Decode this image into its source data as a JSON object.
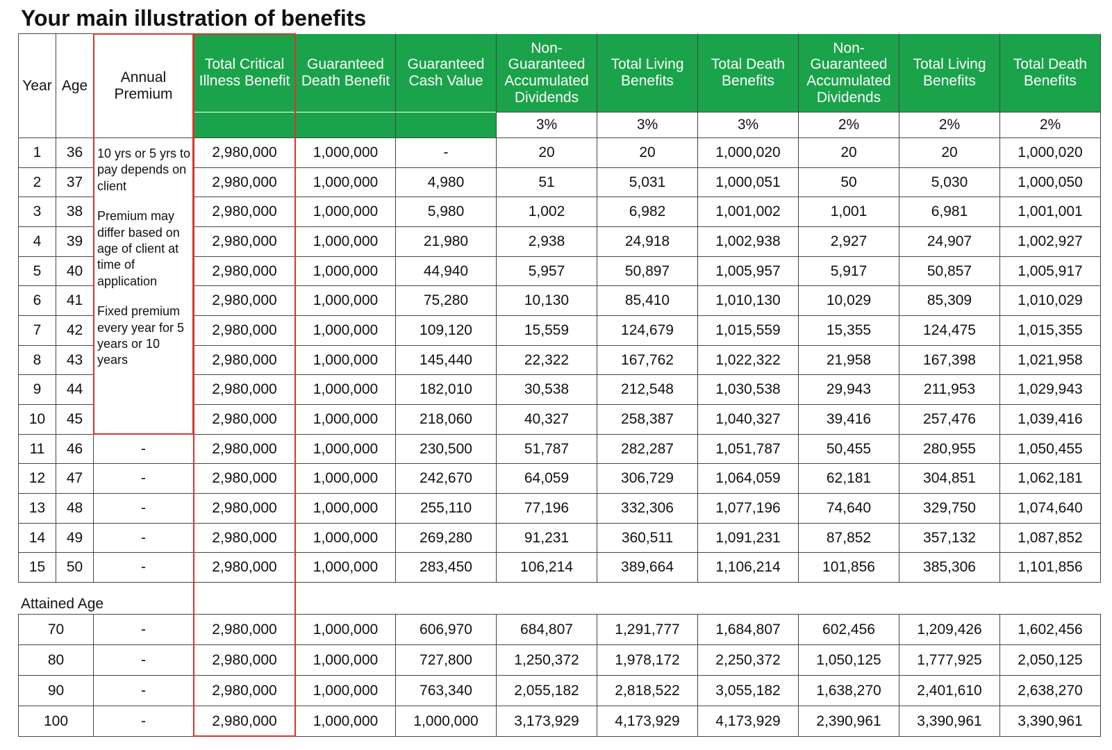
{
  "title": "Your main illustration of benefits",
  "header": {
    "columns": [
      "Year",
      "Age",
      "Annual Premium",
      "Total Critical Illness Benefit",
      "Guaranteed Death Benefit",
      "Guaranteed Cash Value",
      "Non-Guaranteed Accumulated Dividends",
      "Total Living Benefits",
      "Total Death Benefits",
      "Non-Guaranteed Accumulated Dividends",
      "Total Living Benefits",
      "Total Death Benefits"
    ],
    "rates": [
      "3%",
      "3%",
      "3%",
      "2%",
      "2%",
      "2%"
    ]
  },
  "premium_note": [
    "10 yrs or 5 yrs to pay depends on client",
    "Premium may differ based on age of client at time of application",
    "Fixed premium every year for 5 years or 10 years"
  ],
  "rows": [
    {
      "year": "1",
      "age": "36",
      "values": [
        "2,980,000",
        "1,000,000",
        "-",
        "20",
        "20",
        "1,000,020",
        "20",
        "20",
        "1,000,020"
      ]
    },
    {
      "year": "2",
      "age": "37",
      "values": [
        "2,980,000",
        "1,000,000",
        "4,980",
        "51",
        "5,031",
        "1,000,051",
        "50",
        "5,030",
        "1,000,050"
      ]
    },
    {
      "year": "3",
      "age": "38",
      "values": [
        "2,980,000",
        "1,000,000",
        "5,980",
        "1,002",
        "6,982",
        "1,001,002",
        "1,001",
        "6,981",
        "1,001,001"
      ]
    },
    {
      "year": "4",
      "age": "39",
      "values": [
        "2,980,000",
        "1,000,000",
        "21,980",
        "2,938",
        "24,918",
        "1,002,938",
        "2,927",
        "24,907",
        "1,002,927"
      ]
    },
    {
      "year": "5",
      "age": "40",
      "values": [
        "2,980,000",
        "1,000,000",
        "44,940",
        "5,957",
        "50,897",
        "1,005,957",
        "5,917",
        "50,857",
        "1,005,917"
      ]
    },
    {
      "year": "6",
      "age": "41",
      "values": [
        "2,980,000",
        "1,000,000",
        "75,280",
        "10,130",
        "85,410",
        "1,010,130",
        "10,029",
        "85,309",
        "1,010,029"
      ]
    },
    {
      "year": "7",
      "age": "42",
      "values": [
        "2,980,000",
        "1,000,000",
        "109,120",
        "15,559",
        "124,679",
        "1,015,559",
        "15,355",
        "124,475",
        "1,015,355"
      ]
    },
    {
      "year": "8",
      "age": "43",
      "values": [
        "2,980,000",
        "1,000,000",
        "145,440",
        "22,322",
        "167,762",
        "1,022,322",
        "21,958",
        "167,398",
        "1,021,958"
      ]
    },
    {
      "year": "9",
      "age": "44",
      "values": [
        "2,980,000",
        "1,000,000",
        "182,010",
        "30,538",
        "212,548",
        "1,030,538",
        "29,943",
        "211,953",
        "1,029,943"
      ]
    },
    {
      "year": "10",
      "age": "45",
      "values": [
        "2,980,000",
        "1,000,000",
        "218,060",
        "40,327",
        "258,387",
        "1,040,327",
        "39,416",
        "257,476",
        "1,039,416"
      ]
    },
    {
      "year": "11",
      "age": "46",
      "premium": "-",
      "values": [
        "2,980,000",
        "1,000,000",
        "230,500",
        "51,787",
        "282,287",
        "1,051,787",
        "50,455",
        "280,955",
        "1,050,455"
      ]
    },
    {
      "year": "12",
      "age": "47",
      "premium": "-",
      "values": [
        "2,980,000",
        "1,000,000",
        "242,670",
        "64,059",
        "306,729",
        "1,064,059",
        "62,181",
        "304,851",
        "1,062,181"
      ]
    },
    {
      "year": "13",
      "age": "48",
      "premium": "-",
      "values": [
        "2,980,000",
        "1,000,000",
        "255,110",
        "77,196",
        "332,306",
        "1,077,196",
        "74,640",
        "329,750",
        "1,074,640"
      ]
    },
    {
      "year": "14",
      "age": "49",
      "premium": "-",
      "values": [
        "2,980,000",
        "1,000,000",
        "269,280",
        "91,231",
        "360,511",
        "1,091,231",
        "87,852",
        "357,132",
        "1,087,852"
      ]
    },
    {
      "year": "15",
      "age": "50",
      "premium": "-",
      "values": [
        "2,980,000",
        "1,000,000",
        "283,450",
        "106,214",
        "389,664",
        "1,106,214",
        "101,856",
        "385,306",
        "1,101,856"
      ]
    }
  ],
  "attained_age": {
    "label": "Attained Age",
    "rows": [
      {
        "age": "70",
        "premium": "-",
        "values": [
          "2,980,000",
          "1,000,000",
          "606,970",
          "684,807",
          "1,291,777",
          "1,684,807",
          "602,456",
          "1,209,426",
          "1,602,456"
        ]
      },
      {
        "age": "80",
        "premium": "-",
        "values": [
          "2,980,000",
          "1,000,000",
          "727,800",
          "1,250,372",
          "1,978,172",
          "2,250,372",
          "1,050,125",
          "1,777,925",
          "2,050,125"
        ]
      },
      {
        "age": "90",
        "premium": "-",
        "values": [
          "2,980,000",
          "1,000,000",
          "763,340",
          "2,055,182",
          "2,818,522",
          "3,055,182",
          "1,638,270",
          "2,401,610",
          "2,638,270"
        ]
      },
      {
        "age": "100",
        "premium": "-",
        "values": [
          "2,980,000",
          "1,000,000",
          "1,000,000",
          "3,173,929",
          "4,173,929",
          "4,173,929",
          "2,390,961",
          "3,390,961",
          "3,390,961"
        ]
      }
    ]
  }
}
